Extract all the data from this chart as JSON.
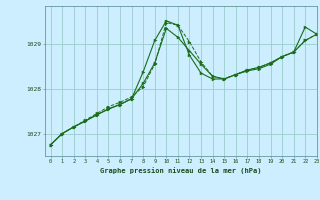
{
  "title": "Graphe pression niveau de la mer (hPa)",
  "bg_color": "#cceeff",
  "grid_color": "#99cccc",
  "line_color": "#1a6e1a",
  "xlim": [
    -0.5,
    23
  ],
  "ylim": [
    1026.5,
    1029.85
  ],
  "yticks": [
    1027,
    1028,
    1029
  ],
  "xticks": [
    0,
    1,
    2,
    3,
    4,
    5,
    6,
    7,
    8,
    9,
    10,
    11,
    12,
    13,
    14,
    15,
    16,
    17,
    18,
    19,
    20,
    21,
    22,
    23
  ],
  "series1_x": [
    0,
    1,
    2,
    3,
    4,
    5,
    6,
    7,
    8,
    9,
    10,
    11,
    12,
    13,
    14,
    15,
    16,
    17,
    18,
    19,
    20,
    21,
    22,
    23
  ],
  "series1_y": [
    1026.75,
    1027.0,
    1027.15,
    1027.3,
    1027.45,
    1027.6,
    1027.7,
    1027.82,
    1028.05,
    1028.55,
    1029.48,
    1029.42,
    1029.05,
    1028.6,
    1028.28,
    1028.22,
    1028.32,
    1028.42,
    1028.48,
    1028.58,
    1028.72,
    1028.82,
    1029.08,
    1029.22
  ],
  "series2_x": [
    0,
    1,
    2,
    3,
    4,
    5,
    6,
    7,
    8,
    9,
    10,
    11,
    12,
    13,
    14,
    15,
    16,
    17,
    18,
    19,
    20,
    21,
    22,
    23
  ],
  "series2_y": [
    1026.75,
    1027.0,
    1027.15,
    1027.28,
    1027.42,
    1027.55,
    1027.65,
    1027.78,
    1028.38,
    1029.08,
    1029.52,
    1029.42,
    1028.75,
    1028.35,
    1028.22,
    1028.22,
    1028.32,
    1028.4,
    1028.45,
    1028.55,
    1028.72,
    1028.82,
    1029.38,
    1029.22
  ],
  "series3_x": [
    0,
    1,
    2,
    3,
    4,
    5,
    6,
    7,
    8,
    9,
    10,
    11,
    12,
    13,
    14,
    15,
    16,
    17,
    18,
    19,
    20,
    21,
    22,
    23
  ],
  "series3_y": [
    1026.75,
    1027.0,
    1027.15,
    1027.28,
    1027.42,
    1027.55,
    1027.65,
    1027.78,
    1028.12,
    1028.58,
    1029.35,
    1029.15,
    1028.85,
    1028.55,
    1028.28,
    1028.22,
    1028.32,
    1028.42,
    1028.48,
    1028.58,
    1028.72,
    1028.82,
    1029.08,
    1029.22
  ]
}
